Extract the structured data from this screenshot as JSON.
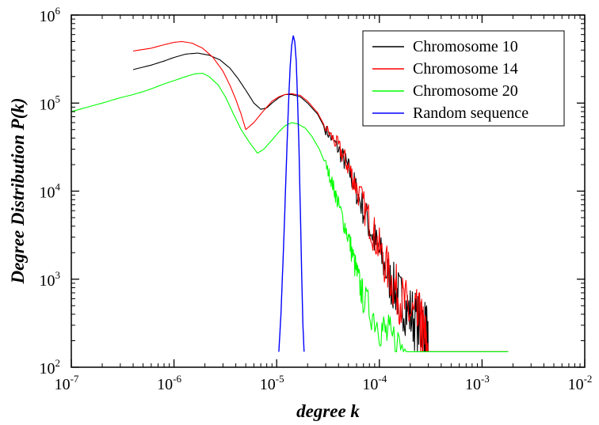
{
  "chart_data": {
    "type": "line",
    "title": "",
    "xlabel": "degree k",
    "ylabel": "Degree Distribution P(k)",
    "x_scale": "log",
    "y_scale": "log",
    "xlim": [
      1e-07,
      0.01
    ],
    "ylim": [
      100,
      1000000
    ],
    "grid": false,
    "legend_position": "top-right",
    "x_ticks": [
      {
        "base": "10",
        "exp": "-7"
      },
      {
        "base": "10",
        "exp": "-6"
      },
      {
        "base": "10",
        "exp": "-5"
      },
      {
        "base": "10",
        "exp": "-4"
      },
      {
        "base": "10",
        "exp": "-3"
      },
      {
        "base": "10",
        "exp": "-2"
      }
    ],
    "y_ticks": [
      {
        "base": "10",
        "exp": "2"
      },
      {
        "base": "10",
        "exp": "3"
      },
      {
        "base": "10",
        "exp": "4"
      },
      {
        "base": "10",
        "exp": "5"
      },
      {
        "base": "10",
        "exp": "6"
      }
    ],
    "series": [
      {
        "name": "Chromosome 10",
        "color": "#000000",
        "noisy_from": 3e-05,
        "x": [
          4e-07,
          6e-07,
          8e-07,
          1e-06,
          1.3e-06,
          1.7e-06,
          2.2e-06,
          2.8e-06,
          3.5e-06,
          4.2e-06,
          5e-06,
          6e-06,
          7e-06,
          8e-06,
          9e-06,
          1.05e-05,
          1.2e-05,
          1.4e-05,
          1.7e-05,
          2e-05,
          2.5e-05,
          3e-05,
          4e-05,
          5e-05,
          6e-05,
          8e-05,
          0.0001,
          0.00013,
          0.00016,
          0.0002,
          0.00025,
          0.00028,
          0.0003,
          0.0005,
          0.001,
          0.0018
        ],
        "y": [
          240000,
          270000,
          300000,
          330000,
          360000,
          370000,
          350000,
          310000,
          250000,
          190000,
          140000,
          100000,
          85000,
          88000,
          100000,
          115000,
          125000,
          125000,
          118000,
          100000,
          75000,
          50000,
          30000,
          18000,
          10000,
          4000,
          2000,
          900,
          600,
          400,
          300,
          250,
          150,
          150,
          150,
          150
        ]
      },
      {
        "name": "Chromosome 14",
        "color": "#ff0000",
        "noisy_from": 3e-05,
        "x": [
          4e-07,
          6e-07,
          8e-07,
          1e-06,
          1.2e-06,
          1.5e-06,
          1.9e-06,
          2.4e-06,
          3e-06,
          3.5e-06,
          4e-06,
          4.5e-06,
          5e-06,
          6e-06,
          7e-06,
          8e-06,
          9e-06,
          1.05e-05,
          1.2e-05,
          1.4e-05,
          1.7e-05,
          2e-05,
          2.5e-05,
          3e-05,
          4e-05,
          5e-05,
          6e-05,
          8e-05,
          0.0001,
          0.00013,
          0.00016,
          0.0002,
          0.00025,
          0.00027,
          0.0003,
          0.0005,
          0.001,
          0.0018
        ],
        "y": [
          390000,
          420000,
          460000,
          490000,
          500000,
          480000,
          420000,
          330000,
          230000,
          160000,
          110000,
          75000,
          50000,
          60000,
          75000,
          90000,
          105000,
          118000,
          125000,
          128000,
          122000,
          105000,
          78000,
          52000,
          32000,
          19000,
          11000,
          4500,
          2200,
          1000,
          600,
          400,
          300,
          220,
          150,
          150,
          150,
          150
        ]
      },
      {
        "name": "Chromosome 20",
        "color": "#00ff00",
        "noisy_from": 3e-05,
        "x": [
          1e-07,
          2e-07,
          3e-07,
          4e-07,
          5e-07,
          6e-07,
          8e-07,
          1e-06,
          1.3e-06,
          1.6e-06,
          1.9e-06,
          2.2e-06,
          2.7e-06,
          3.2e-06,
          3.8e-06,
          4.5e-06,
          5.5e-06,
          6.5e-06,
          7.5e-06,
          9e-06,
          1.05e-05,
          1.2e-05,
          1.4e-05,
          1.6e-05,
          1.9e-05,
          2.2e-05,
          2.6e-05,
          3e-05,
          3.5e-05,
          4e-05,
          5e-05,
          6e-05,
          7e-05,
          0.0001,
          0.00013,
          0.0002,
          0.0003,
          0.0005,
          0.001,
          0.0018
        ],
        "y": [
          80000,
          100000,
          115000,
          125000,
          135000,
          145000,
          165000,
          180000,
          200000,
          215000,
          218000,
          200000,
          160000,
          115000,
          75000,
          50000,
          35000,
          27000,
          30000,
          38000,
          47000,
          55000,
          60000,
          58000,
          52000,
          42000,
          30000,
          20000,
          12000,
          7000,
          3000,
          1200,
          600,
          300,
          200,
          150,
          150,
          150,
          150,
          150
        ]
      },
      {
        "name": "Random sequence",
        "color": "#0000ff",
        "noisy_from": 1,
        "x": [
          1.05e-05,
          1.1e-05,
          1.15e-05,
          1.2e-05,
          1.25e-05,
          1.3e-05,
          1.35e-05,
          1.4e-05,
          1.45e-05,
          1.5e-05,
          1.55e-05,
          1.6e-05,
          1.65e-05,
          1.7e-05,
          1.75e-05,
          1.8e-05,
          1.85e-05
        ],
        "y": [
          150,
          400,
          1500,
          6000,
          25000,
          90000,
          250000,
          450000,
          580000,
          500000,
          300000,
          100000,
          30000,
          6000,
          1200,
          300,
          150
        ]
      }
    ]
  }
}
